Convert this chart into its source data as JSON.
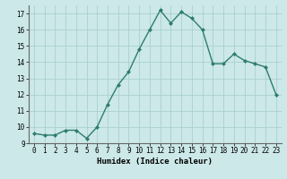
{
  "x": [
    0,
    1,
    2,
    3,
    4,
    5,
    6,
    7,
    8,
    9,
    10,
    11,
    12,
    13,
    14,
    15,
    16,
    17,
    18,
    19,
    20,
    21,
    22,
    23
  ],
  "y": [
    9.6,
    9.5,
    9.5,
    9.8,
    9.8,
    9.3,
    10.0,
    11.4,
    12.6,
    13.4,
    14.8,
    16.0,
    17.2,
    16.4,
    17.1,
    16.7,
    16.0,
    13.9,
    13.9,
    14.5,
    14.1,
    13.9,
    13.7,
    12.0
  ],
  "line_color": "#2e7d6e",
  "marker": "D",
  "marker_size": 2.0,
  "line_width": 1.0,
  "bg_color": "#cce8e8",
  "grid_color": "#aacfcf",
  "xlabel": "Humidex (Indice chaleur)",
  "xlim": [
    -0.5,
    23.5
  ],
  "ylim": [
    9.0,
    17.5
  ],
  "yticks": [
    9,
    10,
    11,
    12,
    13,
    14,
    15,
    16,
    17
  ],
  "xticks": [
    0,
    1,
    2,
    3,
    4,
    5,
    6,
    7,
    8,
    9,
    10,
    11,
    12,
    13,
    14,
    15,
    16,
    17,
    18,
    19,
    20,
    21,
    22,
    23
  ],
  "tick_fontsize": 5.5,
  "xlabel_fontsize": 6.5,
  "tick_color": "#000000",
  "spine_color": "#666666"
}
